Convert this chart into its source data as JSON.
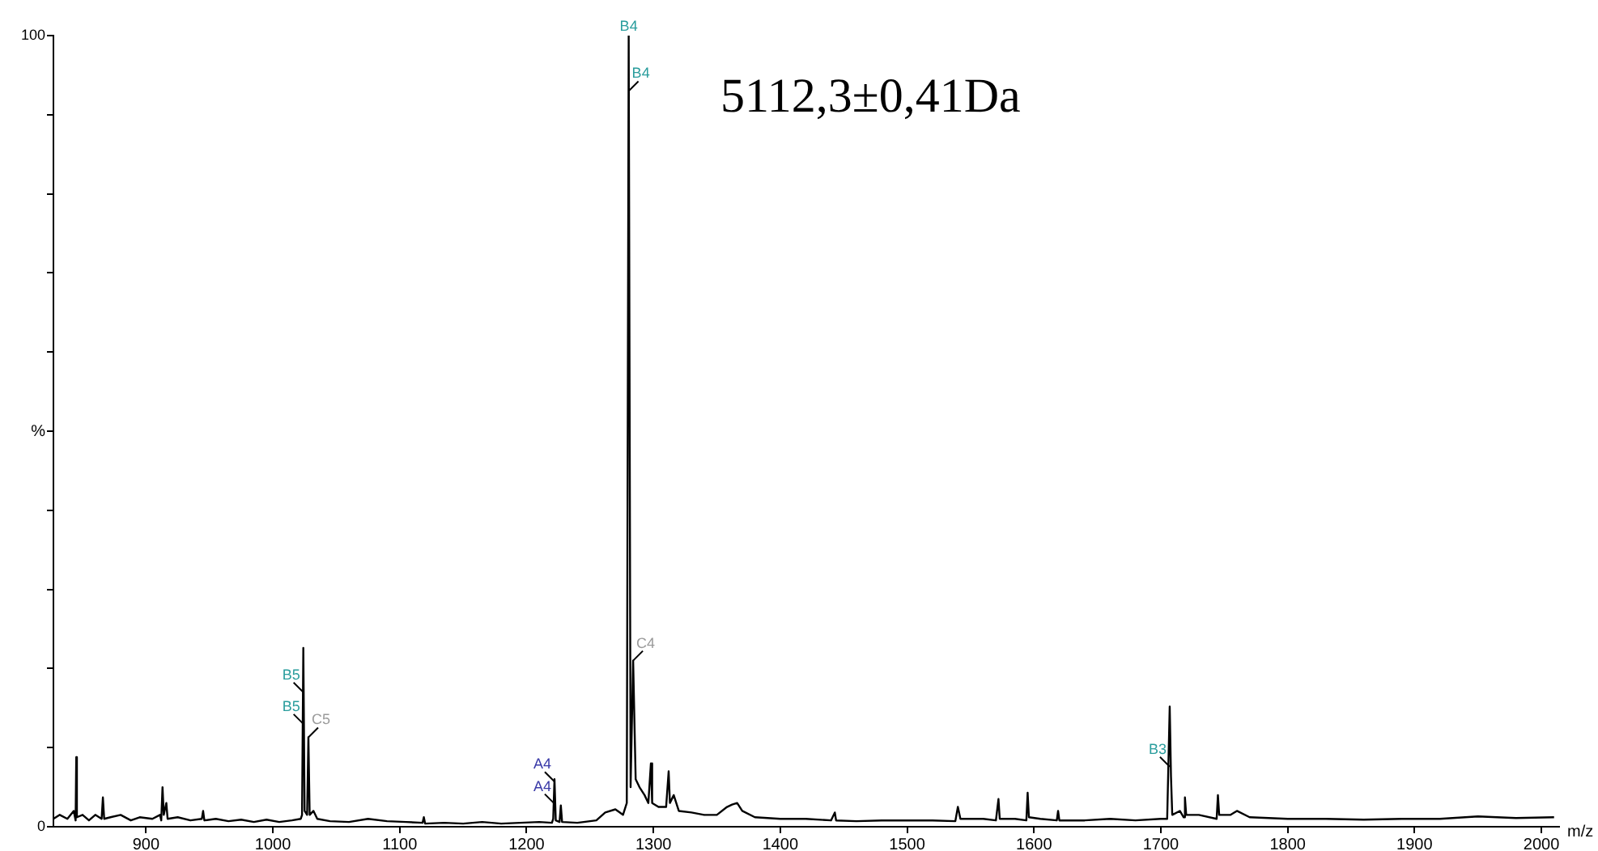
{
  "chart_data": {
    "type": "line",
    "xlabel": "m/z",
    "ylabel": "%",
    "xlim": [
      827,
      2014
    ],
    "ylim": [
      0,
      100
    ],
    "xticks": [
      900,
      1000,
      1100,
      1200,
      1300,
      1400,
      1500,
      1600,
      1700,
      1800,
      1900,
      2000
    ],
    "yticks": [
      0,
      {
        "value": 10,
        "label": null
      },
      {
        "value": 20,
        "label": null
      },
      {
        "value": 30,
        "label": null
      },
      {
        "value": 40,
        "label": null
      },
      {
        "value": 50,
        "label": null
      },
      {
        "value": 60,
        "label": null
      },
      {
        "value": 70,
        "label": null
      },
      {
        "value": 80,
        "label": null
      },
      {
        "value": 90,
        "label": null
      },
      100
    ],
    "grid": false,
    "legend": false,
    "marker": "none",
    "line_style": "solid",
    "x": [
      827,
      832,
      838,
      843,
      844.5,
      845,
      845.5,
      850,
      855,
      860,
      865,
      866,
      867,
      872,
      880,
      888,
      895,
      905,
      911,
      912,
      913,
      914,
      916,
      917,
      925,
      935,
      944,
      945,
      946,
      955,
      965,
      975,
      985,
      995,
      1005,
      1015,
      1022,
      1023,
      1024,
      1025,
      1027,
      1028,
      1029,
      1032,
      1035,
      1045,
      1060,
      1075,
      1090,
      1105,
      1118,
      1119,
      1120,
      1135,
      1150,
      1165,
      1180,
      1195,
      1210,
      1220,
      1221,
      1222,
      1223,
      1226,
      1227,
      1228,
      1240,
      1255,
      1262,
      1270,
      1276,
      1279,
      1280.5,
      1282,
      1284,
      1286,
      1289,
      1293,
      1296,
      1298,
      1299,
      1304,
      1310,
      1312,
      1313,
      1316,
      1320,
      1330,
      1340,
      1350,
      1358,
      1362,
      1366,
      1370,
      1380,
      1400,
      1420,
      1440,
      1443,
      1444,
      1460,
      1480,
      1500,
      1520,
      1538,
      1540,
      1542,
      1560,
      1570,
      1572,
      1573,
      1585,
      1594,
      1595,
      1596,
      1605,
      1618,
      1619,
      1620,
      1640,
      1660,
      1680,
      1700,
      1705,
      1707,
      1708,
      1709,
      1715,
      1718,
      1719,
      1720,
      1730,
      1744,
      1745,
      1746,
      1755,
      1760,
      1770,
      1800,
      1830,
      1860,
      1890,
      1920,
      1950,
      1980,
      2010
    ],
    "series": [
      {
        "color": "#000000",
        "values": [
          1,
          1.5,
          1,
          2,
          0.8,
          8.8,
          1.2,
          1.5,
          0.8,
          1.5,
          1,
          3.7,
          1,
          1.2,
          1.5,
          0.8,
          1.2,
          1,
          1.5,
          0.8,
          5,
          1.5,
          3,
          1,
          1.2,
          0.8,
          1,
          2,
          0.8,
          1,
          0.7,
          0.9,
          0.6,
          0.9,
          0.6,
          0.8,
          1,
          1.5,
          22.6,
          2,
          1.5,
          11.3,
          1.5,
          2,
          1,
          0.7,
          0.6,
          1,
          0.7,
          0.6,
          0.5,
          1.2,
          0.4,
          0.5,
          0.4,
          0.6,
          0.4,
          0.5,
          0.6,
          0.5,
          1,
          6,
          0.8,
          0.6,
          2.7,
          0.6,
          0.5,
          0.8,
          1.8,
          2.2,
          1.5,
          3,
          100,
          5,
          21,
          6,
          5,
          4,
          3,
          8,
          3,
          2.5,
          2.5,
          7,
          3,
          4,
          2,
          1.8,
          1.5,
          1.5,
          2.5,
          2.8,
          3,
          2,
          1.2,
          1,
          1,
          0.8,
          1.8,
          0.8,
          0.7,
          0.8,
          0.8,
          0.8,
          0.7,
          2.5,
          1,
          1,
          0.8,
          3.5,
          1,
          1,
          0.8,
          4.3,
          1.2,
          1,
          0.8,
          2,
          0.8,
          0.8,
          1,
          0.8,
          1,
          1,
          15.2,
          6.4,
          1.5,
          2,
          1.2,
          3.7,
          1.5,
          1.5,
          1,
          4,
          1.5,
          1.5,
          2,
          1.2,
          1,
          1,
          0.9,
          1,
          1,
          1.3,
          1.1,
          1.2
        ]
      }
    ],
    "annotations": [
      {
        "text": "B4",
        "x": 1280.5,
        "y": 100
      },
      {
        "text": "B4",
        "x": 1280.5,
        "y": 93
      },
      {
        "text": "B5",
        "x": 1024,
        "y": 17
      },
      {
        "text": "B5",
        "x": 1024,
        "y": 13
      },
      {
        "text": "C5",
        "x": 1028,
        "y": 11.3
      },
      {
        "text": "A4",
        "x": 1222,
        "y": 5.7
      },
      {
        "text": "A4",
        "x": 1222,
        "y": 2.9
      },
      {
        "text": "C4",
        "x": 1284,
        "y": 21
      },
      {
        "text": "B3",
        "x": 1707,
        "y": 7.6
      },
      "5112,3±0,41Da"
    ]
  }
}
